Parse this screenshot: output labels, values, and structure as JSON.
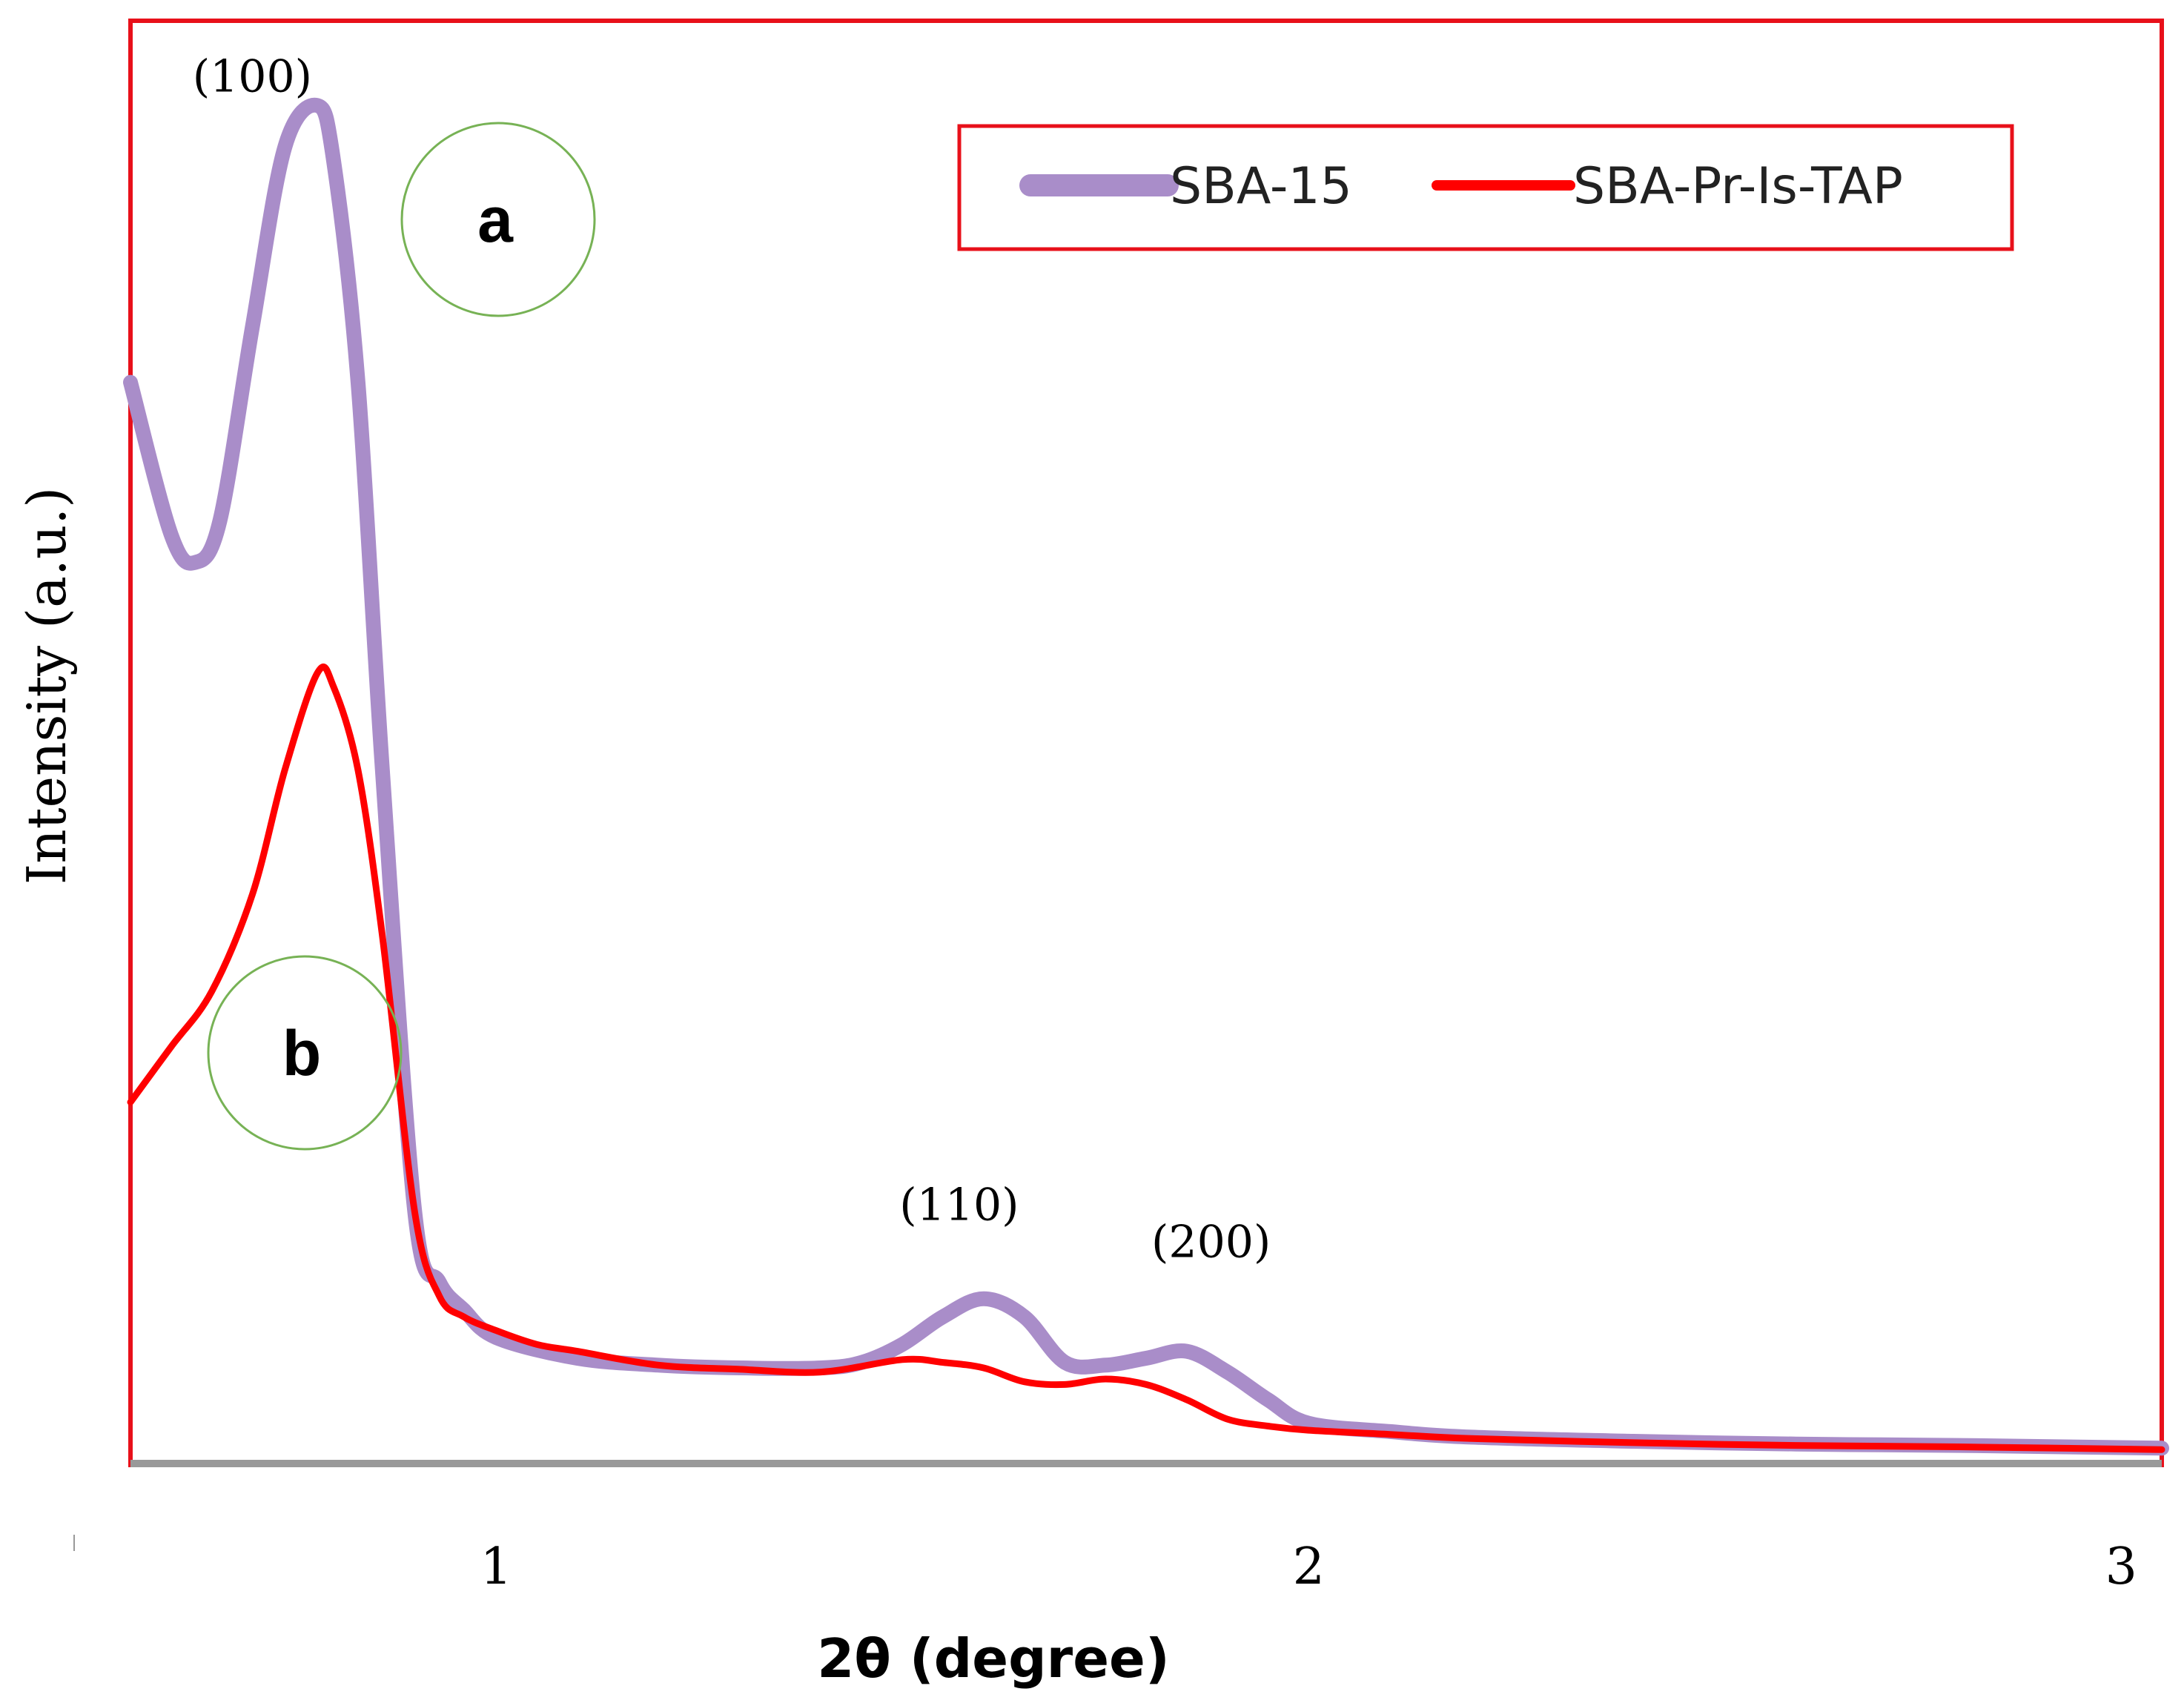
{
  "chart_data": {
    "type": "line",
    "xlabel": "2θ (degree)",
    "ylabel": "Intensity (a.u.)",
    "xlim": [
      0.55,
      3.05
    ],
    "ylim": [
      0,
      100
    ],
    "x_ticks": [
      "1",
      "2",
      "3"
    ],
    "x_tick_values": [
      1,
      2,
      3
    ],
    "legend_position": "top-right",
    "colors": {
      "frame": "#e8101a",
      "axis": "#999999",
      "circle": "#77b255"
    },
    "series": [
      {
        "name": "SBA-15",
        "curve_label": "a",
        "color": "#a98dc9",
        "x": [
          0.55,
          0.6,
          0.63,
          0.66,
          0.7,
          0.74,
          0.78,
          0.8,
          0.83,
          0.86,
          0.9,
          0.93,
          0.96,
          1.0,
          1.1,
          1.2,
          1.3,
          1.4,
          1.45,
          1.5,
          1.55,
          1.6,
          1.65,
          1.7,
          1.75,
          1.8,
          1.85,
          1.9,
          1.95,
          2.0,
          2.1,
          2.2,
          2.4,
          2.6,
          2.8,
          3.05
        ],
        "y": [
          78,
          67,
          65,
          68,
          82,
          95,
          98,
          94,
          78,
          50,
          18,
          13,
          11,
          9,
          7.5,
          7,
          6.8,
          6.8,
          7.2,
          8.5,
          10.5,
          11.8,
          10.5,
          7.2,
          7,
          7.5,
          8,
          6.5,
          4.5,
          2.8,
          2.2,
          1.8,
          1.5,
          1.3,
          1.2,
          1.0
        ]
      },
      {
        "name": "SBA-Pr-Is-TAP",
        "curve_label": "b",
        "color": "#ff0000",
        "x": [
          0.55,
          0.6,
          0.65,
          0.7,
          0.74,
          0.78,
          0.8,
          0.83,
          0.86,
          0.9,
          0.93,
          0.96,
          1.0,
          1.05,
          1.1,
          1.2,
          1.3,
          1.4,
          1.5,
          1.55,
          1.6,
          1.65,
          1.7,
          1.75,
          1.8,
          1.85,
          1.9,
          1.95,
          2.0,
          2.1,
          2.2,
          2.4,
          2.6,
          2.8,
          3.05
        ],
        "y": [
          26,
          30,
          34,
          41,
          50,
          57,
          56,
          50,
          38,
          18,
          12,
          10.5,
          9.5,
          8.5,
          8,
          7,
          6.7,
          6.5,
          7.4,
          7.2,
          6.8,
          5.8,
          5.6,
          6,
          5.6,
          4.5,
          3.1,
          2.6,
          2.3,
          2.0,
          1.7,
          1.4,
          1.2,
          1.1,
          0.9
        ]
      }
    ],
    "annotations": [
      {
        "text": "(100)",
        "x": 0.7,
        "y": 99
      },
      {
        "text": "(110)",
        "x": 1.57,
        "y": 17.5
      },
      {
        "text": "(200)",
        "x": 1.88,
        "y": 14.8
      }
    ]
  }
}
